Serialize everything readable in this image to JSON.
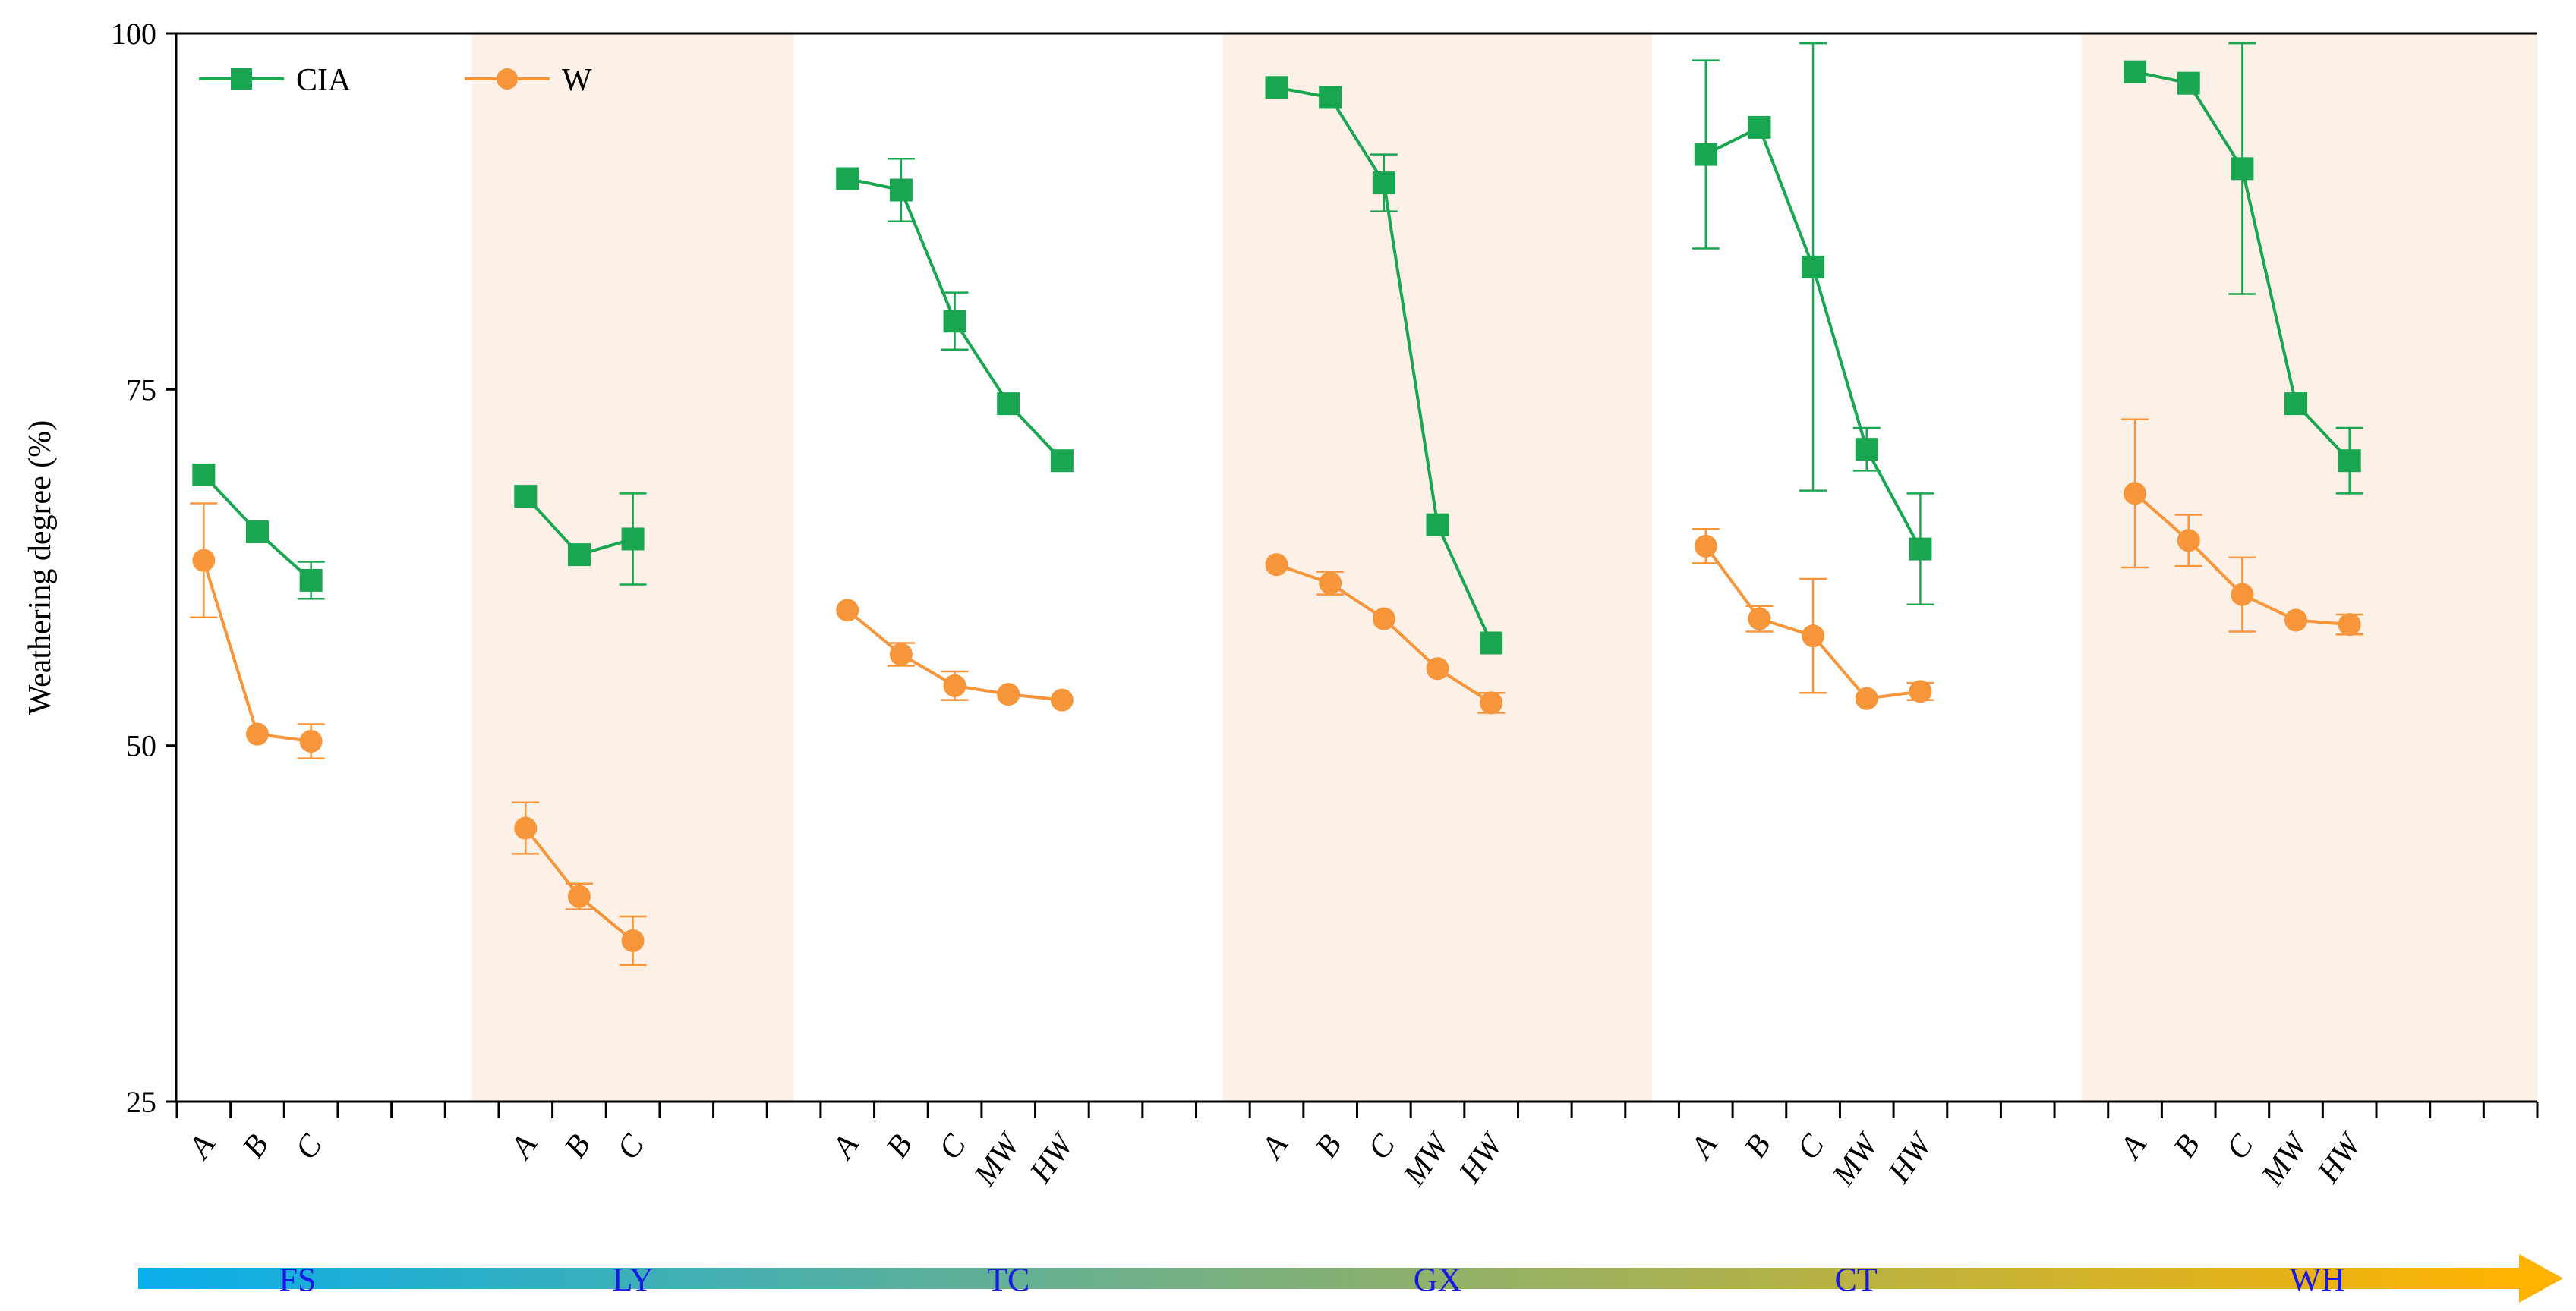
{
  "chart_data": {
    "type": "line",
    "ylabel": "Weathering degree (%)",
    "ylim": [
      25,
      100
    ],
    "yticks": [
      25,
      50,
      75,
      100
    ],
    "legend_position": "top-left",
    "legend": [
      {
        "name": "CIA",
        "marker": "square",
        "color": "#1aa650"
      },
      {
        "name": "W",
        "marker": "circle",
        "color": "#f7953a"
      }
    ],
    "colors": {
      "cia": "#1aa650",
      "w": "#f7953a",
      "shade": "#fdf0e6",
      "arrow_start": "#09aeea",
      "arrow_end": "#ffb300",
      "group_label": "#1a1ae6"
    },
    "shaded_groups": [
      "LY",
      "GX",
      "WH"
    ],
    "groups": [
      {
        "name": "FS",
        "slots": [
          {
            "label": "A",
            "cia": 69.0,
            "w": 63.0,
            "w_err": 4.0
          },
          {
            "label": "B",
            "cia": 65.0,
            "w": 50.8
          },
          {
            "label": "C",
            "cia": 61.6,
            "cia_err": 1.3,
            "w": 50.3,
            "w_err": 1.2
          }
        ]
      },
      {
        "name": "LY",
        "slots": [
          {
            "label": "A",
            "cia": 67.5,
            "w": 44.2,
            "w_err": 1.8
          },
          {
            "label": "B",
            "cia": 63.4,
            "w": 39.4,
            "w_err": 0.9
          },
          {
            "label": "C",
            "cia": 64.5,
            "cia_err": 3.2,
            "w": 36.3,
            "w_err": 1.7
          }
        ]
      },
      {
        "name": "TC",
        "slots": [
          {
            "label": "A",
            "cia": 89.8,
            "w": 59.5
          },
          {
            "label": "B",
            "cia": 89.0,
            "cia_err": 2.2,
            "w": 56.4,
            "w_err": 0.8
          },
          {
            "label": "C",
            "cia": 79.8,
            "cia_err": 2.0,
            "w": 54.2,
            "w_err": 1.0
          },
          {
            "label": "MW",
            "cia": 74.0,
            "w": 53.6
          },
          {
            "label": "HW",
            "cia": 70.0,
            "w": 53.2
          }
        ]
      },
      {
        "name": "GX",
        "slots": [
          {
            "label": "A",
            "cia": 96.2,
            "w": 62.7
          },
          {
            "label": "B",
            "cia": 95.5,
            "w": 61.4,
            "w_err": 0.8
          },
          {
            "label": "C",
            "cia": 89.5,
            "cia_err": 2.0,
            "w": 58.9
          },
          {
            "label": "MW",
            "cia": 65.5,
            "w": 55.4
          },
          {
            "label": "HW",
            "cia": 57.2,
            "w": 53.0,
            "w_err": 0.7
          }
        ]
      },
      {
        "name": "CT",
        "slots": [
          {
            "label": "A",
            "cia": 91.5,
            "cia_err": 6.6,
            "w": 64.0,
            "w_err": 1.2
          },
          {
            "label": "B",
            "cia": 93.4,
            "w": 58.9,
            "w_err": 0.9
          },
          {
            "label": "C",
            "cia": 83.6,
            "cia_err": 15.7,
            "w": 57.7,
            "w_err": 4.0
          },
          {
            "label": "MW",
            "cia": 70.8,
            "cia_err": 1.5,
            "w": 53.3
          },
          {
            "label": "HW",
            "cia": 63.8,
            "cia_err": 3.9,
            "w": 53.8,
            "w_err": 0.6
          }
        ]
      },
      {
        "name": "WH",
        "slots": [
          {
            "label": "A",
            "cia": 97.3,
            "w": 67.7,
            "w_err": 5.2
          },
          {
            "label": "B",
            "cia": 96.5,
            "w": 64.4,
            "w_err": 1.8
          },
          {
            "label": "C",
            "cia": 90.5,
            "cia_err": 8.8,
            "w": 60.6,
            "w_err": 2.6
          },
          {
            "label": "MW",
            "cia": 74.0,
            "w": 58.8
          },
          {
            "label": "HW",
            "cia": 70.0,
            "cia_err": 2.3,
            "w": 58.5,
            "w_err": 0.7
          }
        ]
      }
    ]
  }
}
